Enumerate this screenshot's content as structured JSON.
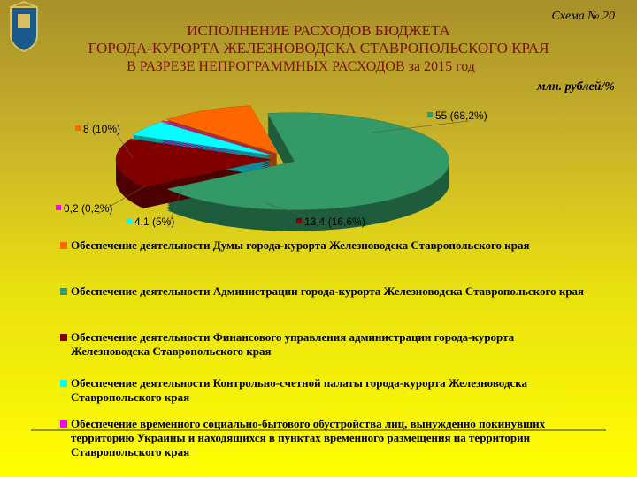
{
  "chart_data": {
    "type": "pie",
    "scheme": "Схема № 20",
    "title": [
      "ИСПОЛНЕНИЕ РАСХОДОВ БЮДЖЕТА",
      "ГОРОДА-КУРОРТА ЖЕЛЕЗНОВОДСКА СТАВРОПОЛЬСКОГО КРАЯ",
      "В РАЗРЕЗЕ  НЕПРОГРАММНЫХ РАСХОДОВ за 2015 год"
    ],
    "unit": "млн. рублей/%",
    "categories": [
      "Обеспечение деятельности Думы города-курорта Железноводска Ставропольского края",
      "Обеспечение деятельности Администрации города-курорта Железноводска Ставропольского края",
      "Обеспечение деятельности Финансового управления администрации города-курорта Железноводска Ставропольского края",
      "Обеспечение деятельности Контрольно-счетной палаты города-курорта Железноводска Ставропольского края",
      "Обеспечение временного социально-бытового обустройства лиц, вынужденно покинувших территорию Украины и находящихся в пунктах временного размещения на территории Ставропольского края"
    ],
    "values": [
      8,
      55,
      13.4,
      4.1,
      0.2
    ],
    "value_labels": [
      "8 (10%)",
      "55 (68,2%)",
      "13,4 (16,6%)",
      "4,1 (5%)",
      "0,2 (0,2%)"
    ],
    "colors": [
      "#ff6600",
      "#339966",
      "#800000",
      "#00ffff",
      "#ff00ff"
    ]
  }
}
